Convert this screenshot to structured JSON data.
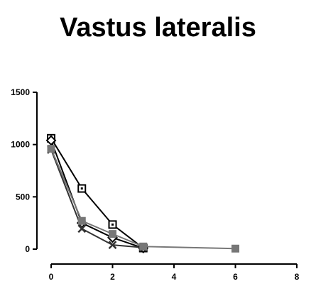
{
  "chart_data": {
    "type": "line",
    "title": "Vastus lateralis",
    "xlabel": "",
    "ylabel": "",
    "xlim": [
      0,
      8
    ],
    "ylim": [
      0,
      1500
    ],
    "xticks": [
      0,
      2,
      4,
      6,
      8
    ],
    "yticks": [
      0,
      500,
      1000,
      1500
    ],
    "xtick_labels": [
      "0",
      "2",
      "4",
      "6",
      "8"
    ],
    "ytick_labels": [
      "0",
      "500",
      "1000",
      "1500"
    ],
    "grid": false,
    "legend": "none",
    "series": [
      {
        "marker": "open-square",
        "color": "#000000",
        "x": [
          0,
          1,
          2,
          3
        ],
        "y": [
          1060,
          580,
          235,
          10
        ]
      },
      {
        "marker": "open-diamond",
        "color": "#000000",
        "x": [
          0,
          1,
          2,
          3
        ],
        "y": [
          1040,
          250,
          110,
          10
        ]
      },
      {
        "marker": "x",
        "color": "#333333",
        "x": [
          0,
          1,
          2,
          3
        ],
        "y": [
          950,
          195,
          40,
          15
        ]
      },
      {
        "marker": "filled-square",
        "color": "#777777",
        "x": [
          0,
          1,
          2,
          3,
          6
        ],
        "y": [
          960,
          270,
          145,
          25,
          5
        ]
      }
    ]
  }
}
